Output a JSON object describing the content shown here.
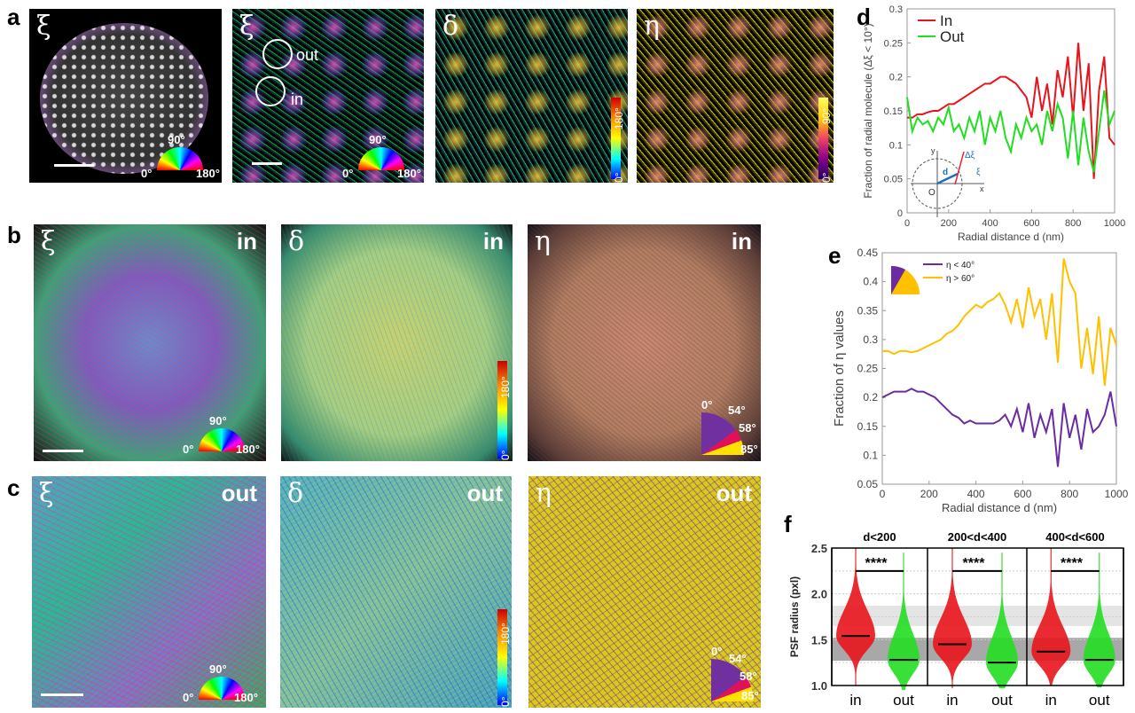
{
  "panel_labels": {
    "a": "a",
    "b": "b",
    "c": "c",
    "d": "d",
    "e": "e",
    "f": "f"
  },
  "panel_a": {
    "images": [
      {
        "symbol": "ξ",
        "wheel": {
          "top": "90°",
          "left": "0°",
          "right": "180°"
        }
      },
      {
        "symbol": "ξ",
        "circle_out": "out",
        "circle_in": "in",
        "wheel": {
          "top": "90°",
          "left": "0°",
          "right": "180°"
        }
      },
      {
        "symbol": "δ",
        "colorbar": {
          "min": "0°",
          "max": "180°"
        }
      },
      {
        "symbol": "η",
        "colorbar": {
          "min": "0°",
          "max": "90°"
        }
      }
    ]
  },
  "panel_b": {
    "region": "in",
    "images": [
      {
        "symbol": "ξ",
        "wheel": {
          "top": "90°",
          "left": "0°",
          "right": "180°"
        }
      },
      {
        "symbol": "δ",
        "colorbar": {
          "min": "0°",
          "max": "180°"
        }
      },
      {
        "symbol": "η",
        "wedge": {
          "a": "0°",
          "b": "54°",
          "c": "58°",
          "d": "85°"
        }
      }
    ]
  },
  "panel_c": {
    "region": "out",
    "images": [
      {
        "symbol": "ξ",
        "wheel": {
          "top": "90°",
          "left": "0°",
          "right": "180°"
        }
      },
      {
        "symbol": "δ",
        "colorbar": {
          "min": "0°",
          "max": "180°"
        }
      },
      {
        "symbol": "η",
        "wedge": {
          "a": "0°",
          "b": "54°",
          "c": "58°",
          "d": "85°"
        }
      }
    ]
  },
  "colors": {
    "in": "#e8141c",
    "out": "#22dd22",
    "eta_low": "#6a2ca0",
    "eta_high": "#ffc000"
  },
  "chart_data": [
    {
      "type": "line",
      "panel": "d",
      "xlabel": "Radial distance d (nm)",
      "ylabel": "Fraction of radial molecule (Δξ < 10°)",
      "xlim": [
        0,
        1000
      ],
      "ylim": [
        0,
        0.3
      ],
      "xticks": [
        "0",
        "200",
        "400",
        "600",
        "800",
        "1000"
      ],
      "yticks": [
        "0",
        "0.05",
        "0.1",
        "0.15",
        "0.2",
        "0.25",
        "0.3"
      ],
      "legend_position": "top-left",
      "inset_labels": {
        "y": "y",
        "x": "x",
        "origin": "O",
        "d": "d",
        "dxi": "Δξ",
        "xi": "ξ"
      },
      "x": [
        0,
        25,
        50,
        75,
        100,
        125,
        150,
        175,
        200,
        225,
        250,
        275,
        300,
        325,
        350,
        375,
        400,
        425,
        450,
        475,
        500,
        525,
        550,
        575,
        600,
        625,
        650,
        675,
        700,
        725,
        750,
        775,
        800,
        825,
        850,
        875,
        900,
        925,
        950,
        975,
        1000
      ],
      "series": [
        {
          "name": "In",
          "color": "#e8141c",
          "values": [
            0.14,
            0.14,
            0.145,
            0.145,
            0.148,
            0.15,
            0.15,
            0.155,
            0.16,
            0.16,
            0.165,
            0.17,
            0.175,
            0.18,
            0.185,
            0.19,
            0.19,
            0.195,
            0.2,
            0.2,
            0.195,
            0.19,
            0.18,
            0.17,
            0.14,
            0.2,
            0.15,
            0.19,
            0.13,
            0.21,
            0.17,
            0.23,
            0.14,
            0.25,
            0.15,
            0.22,
            0.05,
            0.18,
            0.23,
            0.11,
            0.1
          ]
        },
        {
          "name": "Out",
          "color": "#22dd22",
          "values": [
            0.17,
            0.12,
            0.14,
            0.13,
            0.135,
            0.12,
            0.14,
            0.13,
            0.155,
            0.12,
            0.13,
            0.11,
            0.14,
            0.12,
            0.15,
            0.1,
            0.14,
            0.12,
            0.15,
            0.11,
            0.09,
            0.13,
            0.11,
            0.14,
            0.12,
            0.13,
            0.1,
            0.15,
            0.12,
            0.16,
            0.14,
            0.08,
            0.15,
            0.07,
            0.14,
            0.09,
            0.06,
            0.12,
            0.18,
            0.13,
            0.15
          ]
        }
      ]
    },
    {
      "type": "line",
      "panel": "e",
      "xlabel": "Radial distance d (nm)",
      "ylabel": "Fraction of η values",
      "xlim": [
        0,
        1000
      ],
      "ylim": [
        0.05,
        0.45
      ],
      "xticks": [
        "0",
        "200",
        "400",
        "600",
        "800",
        "1000"
      ],
      "yticks": [
        "0.05",
        "0.1",
        "0.15",
        "0.2",
        "0.25",
        "0.3",
        "0.35",
        "0.4",
        "0.45"
      ],
      "legend_position": "top-left",
      "x": [
        0,
        25,
        50,
        75,
        100,
        125,
        150,
        175,
        200,
        225,
        250,
        275,
        300,
        325,
        350,
        375,
        400,
        425,
        450,
        475,
        500,
        525,
        550,
        575,
        600,
        625,
        650,
        675,
        700,
        725,
        750,
        775,
        800,
        825,
        850,
        875,
        900,
        925,
        950,
        975,
        1000
      ],
      "series": [
        {
          "name": "η < 40°",
          "color": "#6a2ca0",
          "values": [
            0.2,
            0.205,
            0.21,
            0.21,
            0.21,
            0.215,
            0.21,
            0.21,
            0.205,
            0.2,
            0.19,
            0.18,
            0.17,
            0.165,
            0.155,
            0.16,
            0.155,
            0.155,
            0.155,
            0.155,
            0.16,
            0.17,
            0.15,
            0.18,
            0.14,
            0.19,
            0.13,
            0.17,
            0.14,
            0.18,
            0.08,
            0.19,
            0.13,
            0.17,
            0.11,
            0.18,
            0.14,
            0.15,
            0.17,
            0.21,
            0.15
          ]
        },
        {
          "name": "η > 60°",
          "color": "#ffc000",
          "values": [
            0.28,
            0.28,
            0.275,
            0.28,
            0.28,
            0.278,
            0.28,
            0.285,
            0.29,
            0.295,
            0.3,
            0.31,
            0.315,
            0.325,
            0.34,
            0.35,
            0.36,
            0.355,
            0.365,
            0.37,
            0.38,
            0.36,
            0.33,
            0.37,
            0.32,
            0.39,
            0.34,
            0.37,
            0.3,
            0.38,
            0.26,
            0.44,
            0.4,
            0.38,
            0.25,
            0.32,
            0.24,
            0.34,
            0.22,
            0.32,
            0.29
          ]
        }
      ]
    },
    {
      "type": "scatter",
      "panel": "f",
      "ylabel": "PSF radius (pxl)",
      "ylim": [
        1.0,
        2.5
      ],
      "yticks": [
        "1.0",
        "1.5",
        "2.0",
        "2.5"
      ],
      "bands": [
        {
          "range": [
            1.65,
            1.87
          ],
          "shade": "light"
        },
        {
          "range": [
            1.27,
            1.52
          ],
          "shade": "dark"
        }
      ],
      "groups": [
        {
          "title": "d<200",
          "significance": "****",
          "in": {
            "label": "in",
            "median": 1.54,
            "min": 1.0,
            "max": 2.5
          },
          "out": {
            "label": "out",
            "median": 1.28,
            "min": 0.95,
            "max": 2.45
          }
        },
        {
          "title": "200<d<400",
          "significance": "****",
          "in": {
            "label": "in",
            "median": 1.45,
            "min": 0.97,
            "max": 2.5
          },
          "out": {
            "label": "out",
            "median": 1.25,
            "min": 0.97,
            "max": 2.45
          }
        },
        {
          "title": "400<d<600",
          "significance": "****",
          "in": {
            "label": "in",
            "median": 1.37,
            "min": 1.0,
            "max": 2.5
          },
          "out": {
            "label": "out",
            "median": 1.28,
            "min": 0.98,
            "max": 2.45
          }
        }
      ]
    }
  ]
}
